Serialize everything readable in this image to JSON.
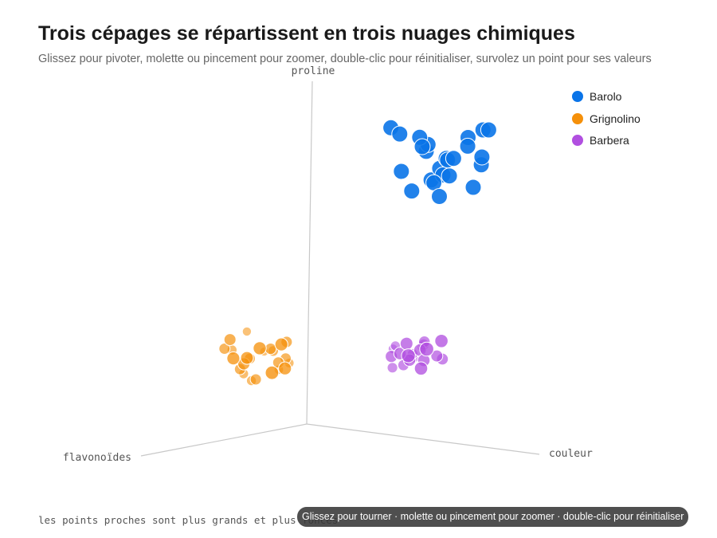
{
  "page": {
    "title": "Trois cépages se répartissent en trois nuages chimiques",
    "subtitle": "Glissez pour pivoter, molette ou pincement pour zoomer, double-clic pour réinitialiser, survolez un point pour ses valeurs",
    "footnote": "les points proches sont plus grands et plus foncés",
    "hint": "Glissez pour tourner · molette ou pincement pour zoomer · double-clic pour réinitialiser"
  },
  "chart_data": {
    "type": "scatter",
    "dimensions": 3,
    "title": "Trois cépages se répartissent en trois nuages chimiques",
    "axes": {
      "x": "flavonoïdes",
      "y": "couleur",
      "z": "proline"
    },
    "legend_position": "top-right",
    "grid": false,
    "series": [
      {
        "name": "Barolo",
        "color": "#0a74e8",
        "points": [
          {
            "left": 45,
            "right": 82,
            "up": 93
          },
          {
            "left": 50,
            "right": 94,
            "up": 90
          },
          {
            "left": 38,
            "right": 100,
            "up": 88
          },
          {
            "left": 55,
            "right": 73,
            "up": 98
          },
          {
            "left": 42,
            "right": 85,
            "up": 86
          },
          {
            "left": 48,
            "right": 110,
            "up": 100
          },
          {
            "left": 57,
            "right": 88,
            "up": 94
          },
          {
            "left": 40,
            "right": 80,
            "up": 82
          },
          {
            "left": 52,
            "right": 98,
            "up": 91
          },
          {
            "left": 46,
            "right": 76,
            "up": 79
          },
          {
            "left": 35,
            "right": 92,
            "up": 95
          },
          {
            "left": 60,
            "right": 102,
            "up": 87
          },
          {
            "left": 44,
            "right": 70,
            "up": 84
          },
          {
            "left": 49,
            "right": 108,
            "up": 92
          },
          {
            "left": 41,
            "right": 87,
            "up": 89
          },
          {
            "left": 58,
            "right": 79,
            "up": 97
          },
          {
            "left": 37,
            "right": 96,
            "up": 81
          },
          {
            "left": 53,
            "right": 84,
            "up": 96
          },
          {
            "left": 47,
            "right": 90,
            "up": 85
          },
          {
            "left": 43,
            "right": 104,
            "up": 99
          },
          {
            "left": 56,
            "right": 95,
            "up": 80
          },
          {
            "left": 39,
            "right": 77,
            "up": 90
          },
          {
            "left": 51,
            "right": 89,
            "up": 83
          },
          {
            "left": 45,
            "right": 99,
            "up": 94
          }
        ]
      },
      {
        "name": "Grignolino",
        "color": "#f5900a",
        "points": [
          {
            "left": 52,
            "right": 12,
            "up": 25
          },
          {
            "left": 48,
            "right": 18,
            "up": 28
          },
          {
            "left": 55,
            "right": 10,
            "up": 22
          },
          {
            "left": 44,
            "right": 22,
            "up": 30
          },
          {
            "left": 50,
            "right": 8,
            "up": 20
          },
          {
            "left": 58,
            "right": 15,
            "up": 26
          },
          {
            "left": 46,
            "right": 20,
            "up": 24
          },
          {
            "left": 53,
            "right": 5,
            "up": 27
          },
          {
            "left": 40,
            "right": 16,
            "up": 21
          },
          {
            "left": 60,
            "right": 9,
            "up": 31
          },
          {
            "left": 49,
            "right": 25,
            "up": 23
          },
          {
            "left": 56,
            "right": 19,
            "up": 29
          },
          {
            "left": 42,
            "right": 11,
            "up": 26
          },
          {
            "left": 51,
            "right": 14,
            "up": 19
          },
          {
            "left": 47,
            "right": 7,
            "up": 32
          },
          {
            "left": 54,
            "right": 23,
            "up": 22
          },
          {
            "left": 45,
            "right": 17,
            "up": 27
          },
          {
            "left": 57,
            "right": 13,
            "up": 24
          },
          {
            "left": 43,
            "right": 21,
            "up": 25
          },
          {
            "left": 59,
            "right": 6,
            "up": 28
          },
          {
            "left": 50,
            "right": 24,
            "up": 30
          },
          {
            "left": 48,
            "right": 10,
            "up": 18
          },
          {
            "left": 38,
            "right": 19,
            "up": 23
          },
          {
            "left": 62,
            "right": 12,
            "up": 26
          }
        ]
      },
      {
        "name": "Barbera",
        "color": "#b14fe0",
        "points": [
          {
            "left": 10,
            "right": 52,
            "up": 26
          },
          {
            "left": 14,
            "right": 58,
            "up": 28
          },
          {
            "left": 8,
            "right": 48,
            "up": 24
          },
          {
            "left": 18,
            "right": 55,
            "up": 30
          },
          {
            "left": 6,
            "right": 62,
            "up": 25
          },
          {
            "left": 12,
            "right": 45,
            "up": 27
          },
          {
            "left": 16,
            "right": 60,
            "up": 23
          },
          {
            "left": 9,
            "right": 56,
            "up": 29
          },
          {
            "left": 20,
            "right": 50,
            "up": 26
          },
          {
            "left": 11,
            "right": 65,
            "up": 31
          },
          {
            "left": 15,
            "right": 47,
            "up": 22
          },
          {
            "left": 7,
            "right": 54,
            "up": 28
          },
          {
            "left": 13,
            "right": 59,
            "up": 25
          },
          {
            "left": 19,
            "right": 53,
            "up": 27
          },
          {
            "left": 5,
            "right": 49,
            "up": 24
          },
          {
            "left": 17,
            "right": 63,
            "up": 29
          },
          {
            "left": 10,
            "right": 57,
            "up": 30
          },
          {
            "left": 14,
            "right": 51,
            "up": 23
          },
          {
            "left": 8,
            "right": 61,
            "up": 26
          },
          {
            "left": 12,
            "right": 46,
            "up": 28
          },
          {
            "left": 16,
            "right": 55,
            "up": 25
          },
          {
            "left": 21,
            "right": 58,
            "up": 27
          }
        ]
      }
    ]
  }
}
